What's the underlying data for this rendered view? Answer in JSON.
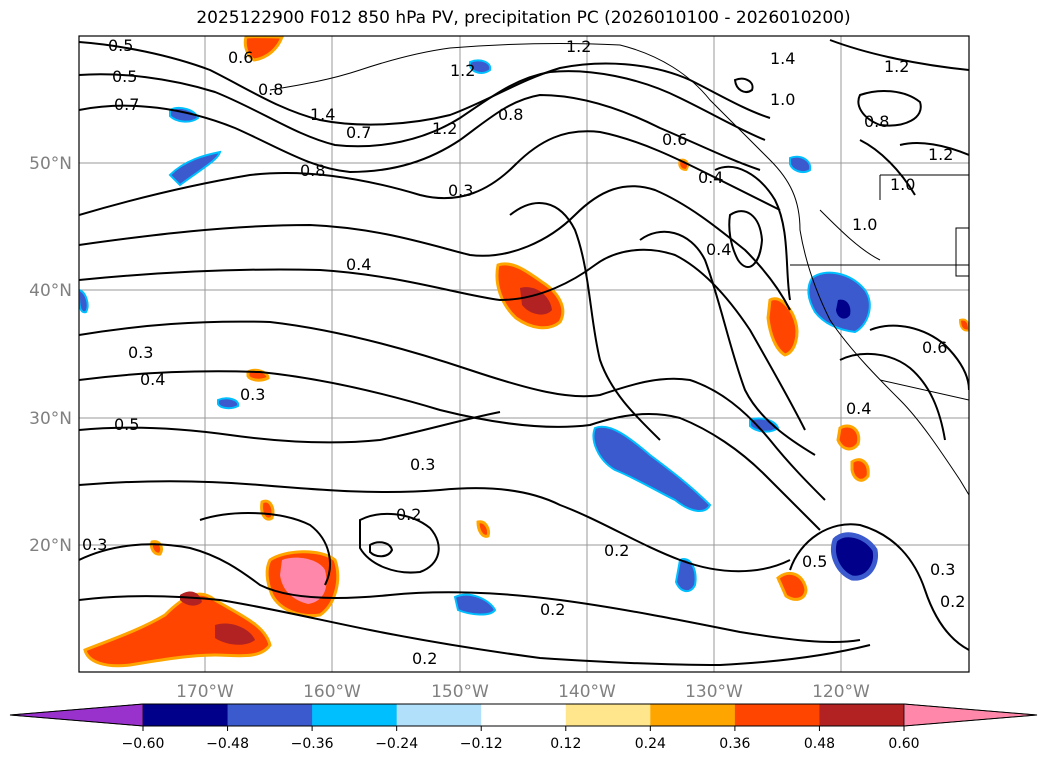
{
  "title": "2025122900 F012 850 hPa PV, precipitation PC (2026010100 - 2026010200)",
  "lat_labels": [
    "50°N",
    "40°N",
    "30°N",
    "20°N"
  ],
  "lon_labels": [
    "170°W",
    "160°W",
    "150°W",
    "140°W",
    "130°W",
    "120°W"
  ],
  "contour_labels": [
    "0.5",
    "0.6",
    "0.8",
    "1.2",
    "1.4",
    "1.2",
    "1.0",
    "0.5",
    "0.7",
    "1.2",
    "1.4",
    "1.2",
    "0.8",
    "0.7",
    "0.6",
    "0.8",
    "0.8",
    "1.2",
    "1.0",
    "0.3",
    "0.4",
    "0.4",
    "1.0",
    "0.4",
    "0.3",
    "0.4",
    "0.5",
    "0.3",
    "0.3",
    "0.2",
    "0.2",
    "0.5",
    "0.3",
    "0.2",
    "0.2",
    "0.2",
    "0.6",
    "0.4",
    "0.3"
  ],
  "colorbar": {
    "ticks": [
      "−0.60",
      "−0.48",
      "−0.36",
      "−0.24",
      "−0.12",
      "0.12",
      "0.24",
      "0.36",
      "0.48",
      "0.60"
    ],
    "colors": [
      "#9932cc",
      "#00008b",
      "#3a5acd",
      "#00bfff",
      "#b0e0fa",
      "#ffffff",
      "#ffe68c",
      "#ffa500",
      "#ff4500",
      "#b22222",
      "#ff88aa"
    ]
  }
}
